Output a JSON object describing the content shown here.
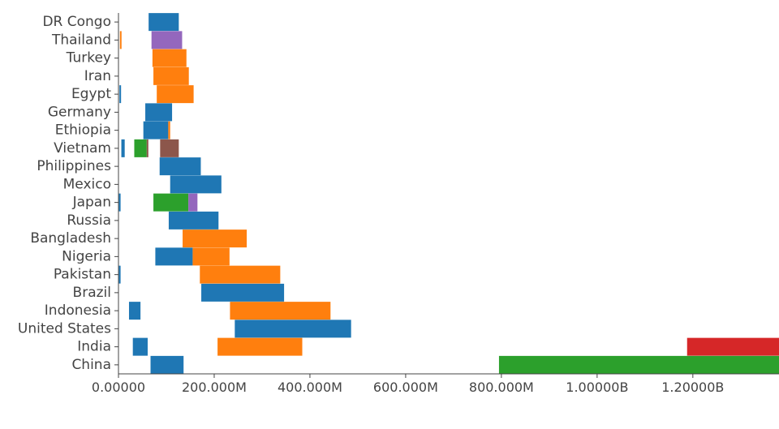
{
  "chart_data": {
    "type": "bar",
    "orientation": "horizontal",
    "floating_segments": true,
    "categories": [
      "DR Congo",
      "Thailand",
      "Turkey",
      "Iran",
      "Egypt",
      "Germany",
      "Ethiopia",
      "Vietnam",
      "Philippines",
      "Mexico",
      "Japan",
      "Russia",
      "Bangladesh",
      "Nigeria",
      "Pakistan",
      "Brazil",
      "Indonesia",
      "United States",
      "India",
      "China"
    ],
    "xlim": [
      0,
      1380000000
    ],
    "x_ticks": [
      0,
      200000000,
      400000000,
      600000000,
      800000000,
      1000000000,
      1200000000
    ],
    "x_tick_labels": [
      "0.00000",
      "200.000M",
      "400.000M",
      "600.000M",
      "800.000M",
      "1.00000B",
      "1.20000B"
    ],
    "grid": false,
    "legend": "none",
    "colors": {
      "blue": "#1f77b4",
      "orange": "#ff7f0e",
      "green": "#2ca02c",
      "red": "#d62728",
      "purple": "#9467bd",
      "brown": "#8c564b"
    },
    "segments": [
      {
        "category": "DR Congo",
        "start": 63000000,
        "end": 126000000,
        "color": "blue"
      },
      {
        "category": "Thailand",
        "start": 3000000,
        "end": 6000000,
        "color": "orange"
      },
      {
        "category": "Thailand",
        "start": 69000000,
        "end": 133000000,
        "color": "purple"
      },
      {
        "category": "Turkey",
        "start": 71000000,
        "end": 142000000,
        "color": "orange"
      },
      {
        "category": "Iran",
        "start": 73000000,
        "end": 147000000,
        "color": "orange"
      },
      {
        "category": "Egypt",
        "start": 2000000,
        "end": 5000000,
        "color": "blue"
      },
      {
        "category": "Egypt",
        "start": 80000000,
        "end": 157000000,
        "color": "orange"
      },
      {
        "category": "Germany",
        "start": 56000000,
        "end": 112000000,
        "color": "blue"
      },
      {
        "category": "Ethiopia",
        "start": 52000000,
        "end": 104000000,
        "color": "blue"
      },
      {
        "category": "Ethiopia",
        "start": 104000000,
        "end": 108000000,
        "color": "orange"
      },
      {
        "category": "Vietnam",
        "start": 6000000,
        "end": 13000000,
        "color": "blue"
      },
      {
        "category": "Vietnam",
        "start": 33000000,
        "end": 59000000,
        "color": "green"
      },
      {
        "category": "Vietnam",
        "start": 59000000,
        "end": 62000000,
        "color": "brown"
      },
      {
        "category": "Vietnam",
        "start": 87000000,
        "end": 126000000,
        "color": "brown"
      },
      {
        "category": "Philippines",
        "start": 86000000,
        "end": 172000000,
        "color": "blue"
      },
      {
        "category": "Mexico",
        "start": 108000000,
        "end": 215000000,
        "color": "blue"
      },
      {
        "category": "Japan",
        "start": 1000000,
        "end": 3000000,
        "color": "blue"
      },
      {
        "category": "Japan",
        "start": 73000000,
        "end": 146000000,
        "color": "green"
      },
      {
        "category": "Japan",
        "start": 146000000,
        "end": 165000000,
        "color": "purple"
      },
      {
        "category": "Russia",
        "start": 105000000,
        "end": 209000000,
        "color": "blue"
      },
      {
        "category": "Bangladesh",
        "start": 134000000,
        "end": 268000000,
        "color": "orange"
      },
      {
        "category": "Nigeria",
        "start": 77000000,
        "end": 155000000,
        "color": "blue"
      },
      {
        "category": "Nigeria",
        "start": 155000000,
        "end": 232000000,
        "color": "orange"
      },
      {
        "category": "Pakistan",
        "start": 1000000,
        "end": 4000000,
        "color": "blue"
      },
      {
        "category": "Pakistan",
        "start": 170000000,
        "end": 338000000,
        "color": "orange"
      },
      {
        "category": "Brazil",
        "start": 173000000,
        "end": 346000000,
        "color": "blue"
      },
      {
        "category": "Indonesia",
        "start": 22000000,
        "end": 46000000,
        "color": "blue"
      },
      {
        "category": "Indonesia",
        "start": 233000000,
        "end": 443000000,
        "color": "orange"
      },
      {
        "category": "United States",
        "start": 243000000,
        "end": 486000000,
        "color": "blue"
      },
      {
        "category": "India",
        "start": 30000000,
        "end": 61000000,
        "color": "blue"
      },
      {
        "category": "India",
        "start": 207000000,
        "end": 384000000,
        "color": "orange"
      },
      {
        "category": "India",
        "start": 1188000000,
        "end": 1380000000,
        "color": "red"
      },
      {
        "category": "China",
        "start": 67000000,
        "end": 136000000,
        "color": "blue"
      },
      {
        "category": "China",
        "start": 795000000,
        "end": 1380000000,
        "color": "green"
      }
    ]
  }
}
